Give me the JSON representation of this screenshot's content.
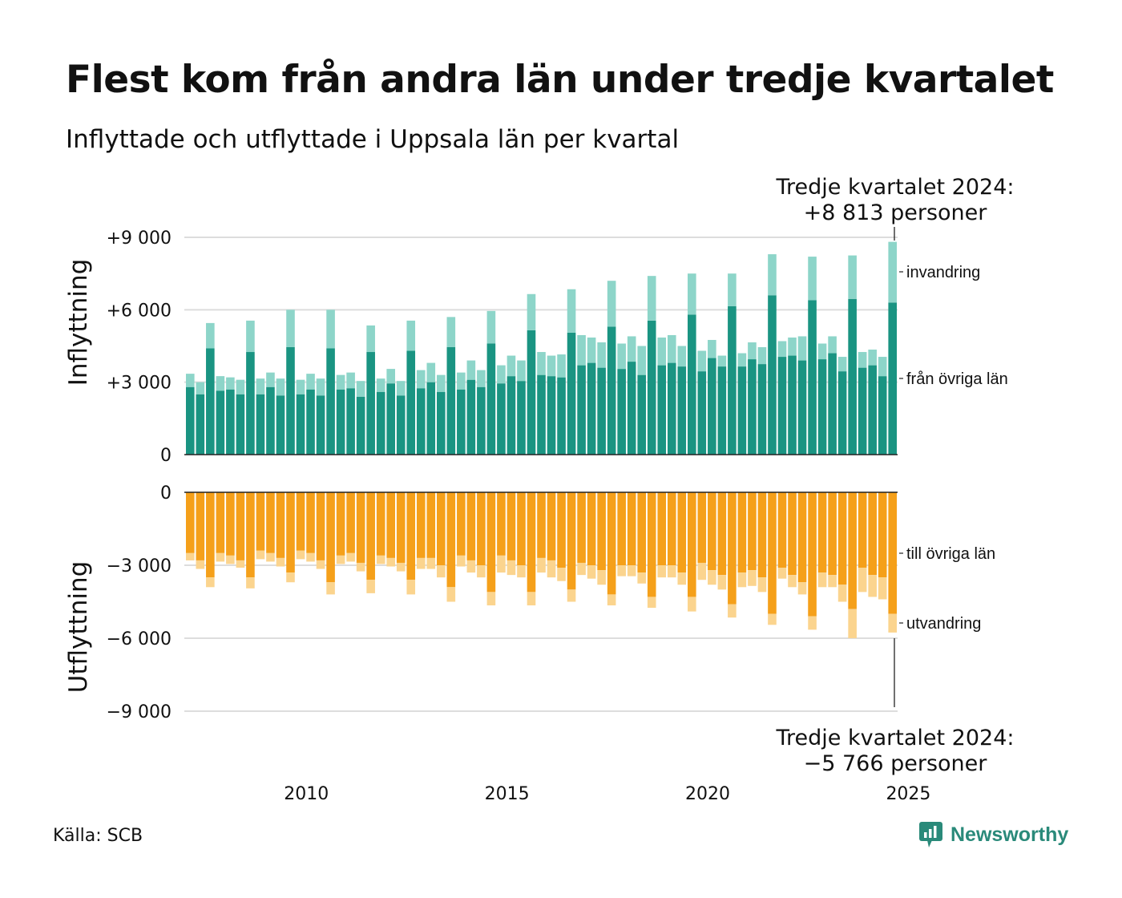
{
  "title": "Flest kom från andra län under tredje kvartalet",
  "subtitle": "Inflyttade och utflyttade i Uppsala län per kvartal",
  "source": "Källa: SCB",
  "brand": "Newsworthy",
  "colors": {
    "in_domestic": "#1a9482",
    "in_immigration": "#8dd5c9",
    "out_domestic": "#f5a01a",
    "out_emigration": "#fbd48e",
    "grid": "#dddddd",
    "brand": "#2a8a7a"
  },
  "chart_data": [
    {
      "type": "bar",
      "stacked": true,
      "x_start": "2007 Q1",
      "x_end": "2024 Q3",
      "x_axis_ticks": [
        "2010",
        "2015",
        "2020",
        "2025"
      ],
      "ylabel": "Inflyttning",
      "ylim": [
        0,
        9000
      ],
      "y_ticks": [
        "0",
        "+3 000",
        "+6 000",
        "+9 000"
      ],
      "grid": true,
      "annotation": {
        "line1": "Tredje kvartalet 2024:",
        "line2": "+8 813 personer"
      },
      "series": [
        {
          "name": "från övriga län",
          "color_key": "in_domestic",
          "values": [
            2800,
            2500,
            4400,
            2650,
            2700,
            2500,
            4250,
            2500,
            2800,
            2450,
            4450,
            2500,
            2700,
            2450,
            4400,
            2700,
            2750,
            2400,
            4250,
            2600,
            2950,
            2450,
            4300,
            2750,
            3000,
            2600,
            4450,
            2700,
            3100,
            2800,
            4600,
            2950,
            3250,
            3050,
            5150,
            3300,
            3250,
            3200,
            5050,
            3700,
            3800,
            3600,
            5300,
            3550,
            3850,
            3300,
            5550,
            3700,
            3800,
            3650,
            5800,
            3450,
            4000,
            3650,
            6150,
            3650,
            3950,
            3750,
            6600,
            4050,
            4100,
            3900,
            6400,
            3950,
            4200,
            3450,
            6450,
            3600,
            3700,
            3250,
            6300
          ]
        },
        {
          "name": "invandring",
          "color_key": "in_immigration",
          "values": [
            550,
            500,
            1050,
            600,
            500,
            600,
            1300,
            650,
            600,
            700,
            1550,
            600,
            650,
            700,
            1600,
            600,
            650,
            650,
            1100,
            550,
            600,
            600,
            1250,
            750,
            800,
            700,
            1250,
            700,
            800,
            700,
            1350,
            750,
            850,
            850,
            1500,
            950,
            850,
            950,
            1800,
            1250,
            1050,
            1050,
            1900,
            1050,
            1050,
            1200,
            1850,
            1150,
            1150,
            850,
            1700,
            850,
            750,
            450,
            1350,
            550,
            700,
            700,
            1700,
            650,
            750,
            1000,
            1800,
            650,
            700,
            600,
            1800,
            650,
            650,
            800,
            2513
          ]
        }
      ]
    },
    {
      "type": "bar",
      "stacked": true,
      "ylabel": "Utflyttning",
      "ylim": [
        -9000,
        0
      ],
      "y_ticks": [
        "0",
        "−3 000",
        "−6 000",
        "−9 000"
      ],
      "grid": true,
      "annotation": {
        "line1": "Tredje kvartalet 2024:",
        "line2": "−5 766 personer"
      },
      "series": [
        {
          "name": "till övriga län",
          "color_key": "out_domestic",
          "values": [
            -2500,
            -2800,
            -3500,
            -2500,
            -2600,
            -2800,
            -3500,
            -2400,
            -2500,
            -2700,
            -3300,
            -2400,
            -2500,
            -2800,
            -3700,
            -2600,
            -2500,
            -2900,
            -3600,
            -2600,
            -2700,
            -2900,
            -3600,
            -2700,
            -2700,
            -3000,
            -3900,
            -2600,
            -2800,
            -3000,
            -4100,
            -2600,
            -2800,
            -3000,
            -4100,
            -2700,
            -2800,
            -3100,
            -4000,
            -2900,
            -3000,
            -3200,
            -4200,
            -3000,
            -3000,
            -3300,
            -4300,
            -3000,
            -3000,
            -3300,
            -4300,
            -2900,
            -3200,
            -3400,
            -4600,
            -3300,
            -3200,
            -3500,
            -5000,
            -3100,
            -3400,
            -3700,
            -5100,
            -3300,
            -3400,
            -3800,
            -4800,
            -3100,
            -3400,
            -3500,
            -5000
          ]
        },
        {
          "name": "utvandring",
          "color_key": "out_emigration",
          "values": [
            -300,
            -350,
            -400,
            -350,
            -350,
            -300,
            -450,
            -350,
            -350,
            -350,
            -400,
            -350,
            -350,
            -350,
            -500,
            -350,
            -350,
            -350,
            -550,
            -350,
            -350,
            -350,
            -600,
            -450,
            -450,
            -500,
            -600,
            -450,
            -500,
            -500,
            -550,
            -700,
            -600,
            -500,
            -550,
            -600,
            -700,
            -550,
            -500,
            -500,
            -550,
            -600,
            -450,
            -450,
            -450,
            -450,
            -450,
            -500,
            -500,
            -500,
            -600,
            -700,
            -600,
            -600,
            -550,
            -600,
            -650,
            -600,
            -450,
            -450,
            -500,
            -500,
            -550,
            -600,
            -500,
            -700,
            -1200,
            -1000,
            -900,
            -900,
            -766
          ]
        }
      ]
    }
  ]
}
